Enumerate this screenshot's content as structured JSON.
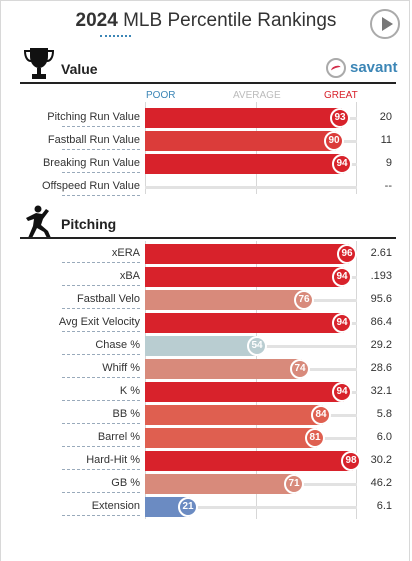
{
  "header": {
    "year": "2024",
    "title": "MLB Percentile Rankings"
  },
  "brand": {
    "name": "savant"
  },
  "scale": {
    "poor": "POOR",
    "average": "AVERAGE",
    "great": "GREAT"
  },
  "colors": {
    "great": "#d8222b",
    "good": "#e0564d",
    "above": "#d88a7b",
    "neutral": "#b9cdd1",
    "poor": "#6b8bc2"
  },
  "sections": {
    "value": {
      "title": "Value",
      "rows": [
        {
          "label": "Pitching Run Value",
          "pct": 93,
          "value": "20",
          "color": "#d8222b"
        },
        {
          "label": "Fastball Run Value",
          "pct": 90,
          "value": "11",
          "color": "#db3c3a"
        },
        {
          "label": "Breaking Run Value",
          "pct": 94,
          "value": "9",
          "color": "#d8222b"
        },
        {
          "label": "Offspeed Run Value",
          "pct": null,
          "value": "--",
          "color": "#e2e2e2"
        }
      ]
    },
    "pitching": {
      "title": "Pitching",
      "rows": [
        {
          "label": "xERA",
          "pct": 96,
          "value": "2.61",
          "color": "#d8222b"
        },
        {
          "label": "xBA",
          "pct": 94,
          "value": ".193",
          "color": "#d8222b"
        },
        {
          "label": "Fastball Velo",
          "pct": 76,
          "value": "95.6",
          "color": "#d88a7b"
        },
        {
          "label": "Avg Exit Velocity",
          "pct": 94,
          "value": "86.4",
          "color": "#d8222b"
        },
        {
          "label": "Chase %",
          "pct": 54,
          "value": "29.2",
          "color": "#b9cdd1"
        },
        {
          "label": "Whiff %",
          "pct": 74,
          "value": "28.6",
          "color": "#d88a7b"
        },
        {
          "label": "K %",
          "pct": 94,
          "value": "32.1",
          "color": "#d8222b"
        },
        {
          "label": "BB %",
          "pct": 84,
          "value": "5.8",
          "color": "#df5f50"
        },
        {
          "label": "Barrel %",
          "pct": 81,
          "value": "6.0",
          "color": "#df5f50"
        },
        {
          "label": "Hard-Hit %",
          "pct": 98,
          "value": "30.2",
          "color": "#d8222b"
        },
        {
          "label": "GB %",
          "pct": 71,
          "value": "46.2",
          "color": "#d88a7b"
        },
        {
          "label": "Extension",
          "pct": 21,
          "value": "6.1",
          "color": "#6b8bc2"
        }
      ]
    }
  }
}
